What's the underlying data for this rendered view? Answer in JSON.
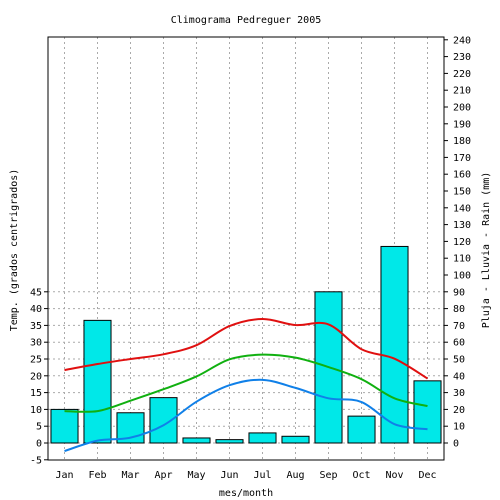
{
  "chart_data": {
    "type": "bar",
    "title": "Climograma Pedreguer 2005",
    "xlabel": "mes/month",
    "ylabel_left": "Temp. (grados centrigrados)",
    "ylabel_right": "Pluja - Lluvia - Rain (mm)",
    "categories": [
      "Jan",
      "Feb",
      "Mar",
      "Apr",
      "May",
      "Jun",
      "Jul",
      "Aug",
      "Sep",
      "Oct",
      "Nov",
      "Dec"
    ],
    "left_axis": {
      "ylim": [
        -5,
        45
      ],
      "ticks": [
        -5,
        0,
        5,
        10,
        15,
        20,
        25,
        30,
        35,
        40,
        45
      ]
    },
    "right_axis": {
      "ylim": [
        0,
        240
      ],
      "ticks": [
        0,
        10,
        20,
        30,
        40,
        50,
        60,
        70,
        80,
        90,
        100,
        110,
        120,
        130,
        140,
        150,
        160,
        170,
        180,
        190,
        200,
        210,
        220,
        230,
        240
      ]
    },
    "grid": true,
    "rain_series": {
      "name": "Rain",
      "axis": "right",
      "color": "#00e8e8",
      "values": [
        20,
        73,
        18,
        27,
        3,
        2,
        6,
        4,
        90,
        16,
        117,
        37
      ]
    },
    "temp_series": [
      {
        "axis": "left",
        "color": "#e01010",
        "values": [
          21.7,
          23.5,
          25.0,
          26.4,
          29.1,
          34.8,
          36.9,
          35.1,
          35.3,
          27.9,
          25.1,
          19.2
        ]
      },
      {
        "axis": "left",
        "color": "#10b010",
        "values": [
          9.5,
          9.5,
          12.6,
          16.0,
          19.8,
          24.9,
          26.3,
          25.4,
          22.6,
          19.0,
          13.3,
          11.0
        ]
      },
      {
        "axis": "left",
        "color": "#1080e8",
        "values": [
          -2.4,
          0.7,
          1.6,
          5.3,
          12.3,
          17.2,
          18.8,
          16.4,
          13.3,
          12.2,
          5.6,
          4.1
        ]
      }
    ]
  }
}
